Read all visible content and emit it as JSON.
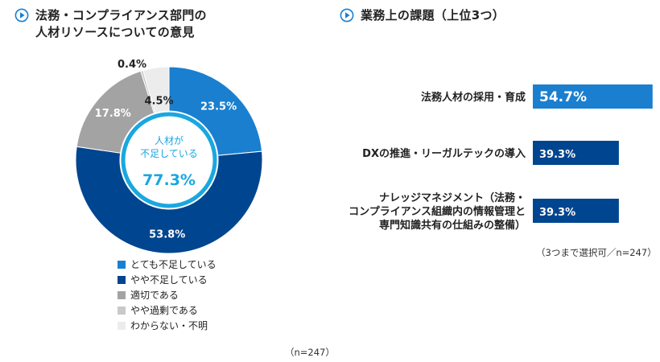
{
  "left_title": [
    "法務・コンプライアンス部門の",
    "人材リソースについての意見"
  ],
  "right_title": "業務上の課題（上位3つ）",
  "chart_data": [
    {
      "type": "pie",
      "categories": [
        "とても不足している",
        "やや不足している",
        "適切である",
        "やや過剰である",
        "わからない・不明"
      ],
      "values": [
        23.5,
        53.8,
        17.8,
        0.4,
        4.5
      ],
      "value_labels": [
        "23.5%",
        "53.8%",
        "17.8%",
        "0.4%",
        "4.5%"
      ],
      "colors": [
        "#1a7fcf",
        "#00458f",
        "#a3a3a3",
        "#c9c9c9",
        "#ececec"
      ],
      "donut": true,
      "center_text": [
        "人材が",
        "不足している"
      ],
      "center_value": "77.3%",
      "legend_position": "bottom",
      "note": "（n=247）"
    },
    {
      "type": "bar",
      "orientation": "horizontal",
      "categories": [
        [
          "法務人材の採用・育成"
        ],
        [
          "DXの推進・リーガルテックの導入"
        ],
        [
          "ナレッジマネジメント（法務・",
          "コンプライアンス組織内の情報管理と",
          "専門知識共有の仕組みの整備）"
        ]
      ],
      "values": [
        54.7,
        39.3,
        39.3
      ],
      "value_labels": [
        "54.7%",
        "39.3%",
        "39.3%"
      ],
      "colors": [
        "#1a7fcf",
        "#00458f",
        "#00458f"
      ],
      "note": "（3つまで選択可／n=247）"
    }
  ]
}
